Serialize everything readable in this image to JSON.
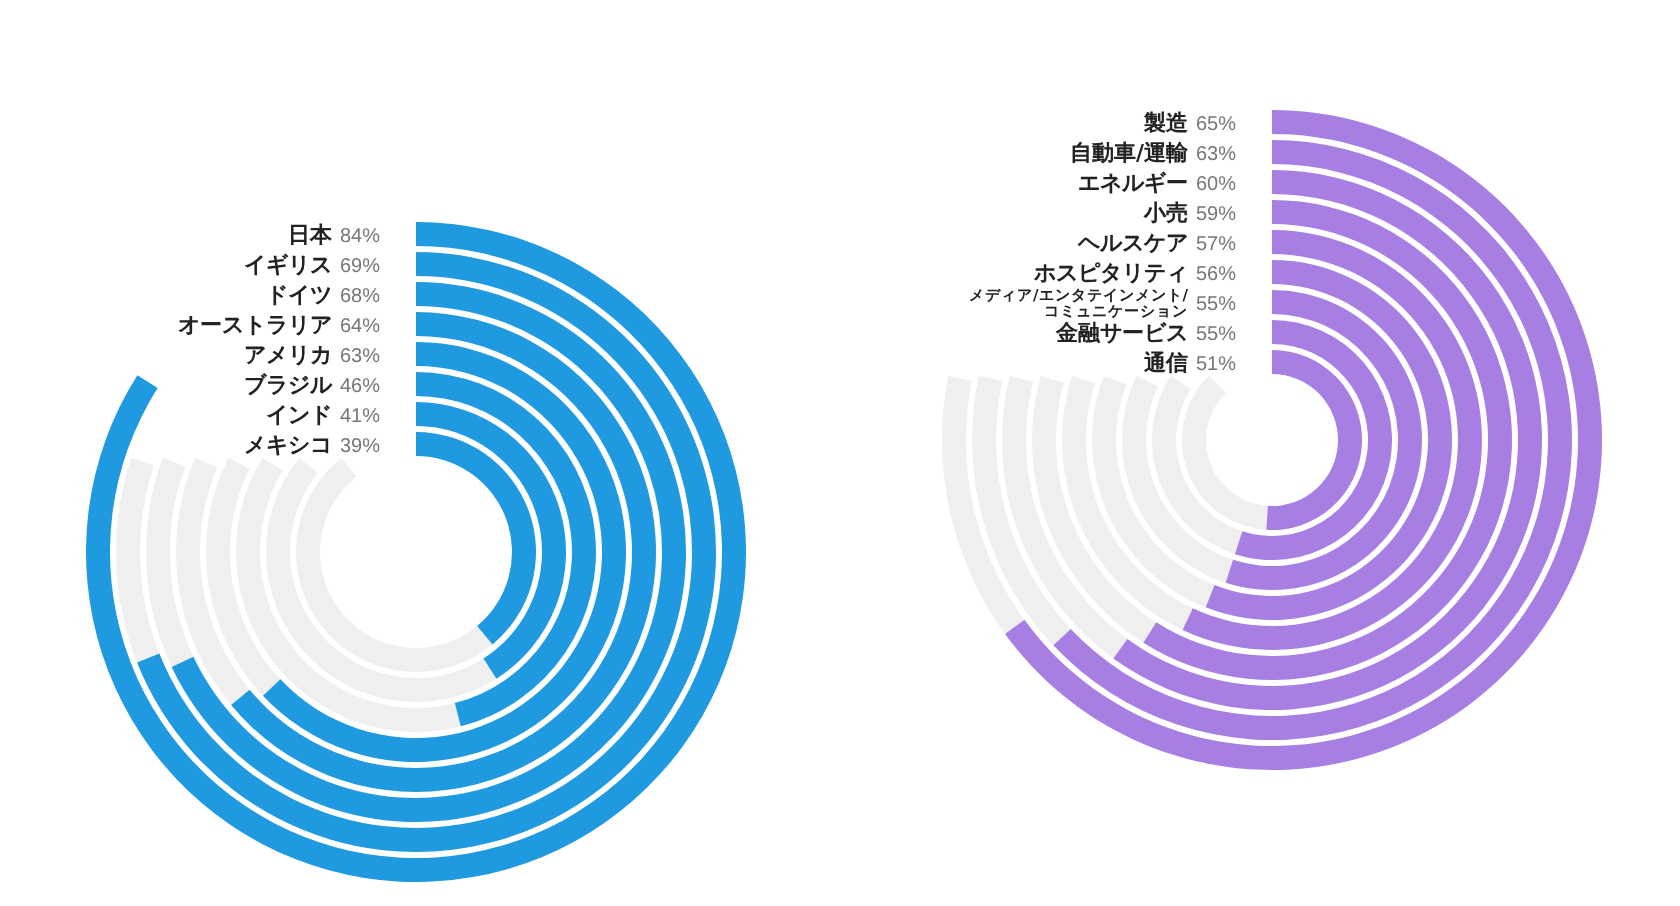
{
  "chart_data": [
    {
      "type": "other",
      "categories": [
        "日本",
        "イギリス",
        "ドイツ",
        "オーストラリア",
        "アメリカ",
        "ブラジル",
        "インド",
        "メキシコ"
      ],
      "values": [
        84,
        69,
        68,
        64,
        63,
        46,
        41,
        39
      ],
      "value_labels": [
        "84%",
        "69%",
        "68%",
        "64%",
        "63%",
        "46%",
        "41%",
        "39%"
      ],
      "color": "#1f9ae0"
    },
    {
      "type": "other",
      "categories": [
        "製造",
        "自動車/運輸",
        "エネルギー",
        "小売",
        "ヘルスケア",
        "ホスピタリティ",
        "メディア/エンタテインメント/\nコミュニケーション",
        "金融サービス",
        "通信"
      ],
      "values": [
        65,
        63,
        60,
        59,
        57,
        56,
        55,
        55,
        51
      ],
      "value_labels": [
        "65%",
        "63%",
        "60%",
        "59%",
        "57%",
        "56%",
        "55%",
        "55%",
        "51%"
      ],
      "color": "#a77ee2"
    }
  ]
}
